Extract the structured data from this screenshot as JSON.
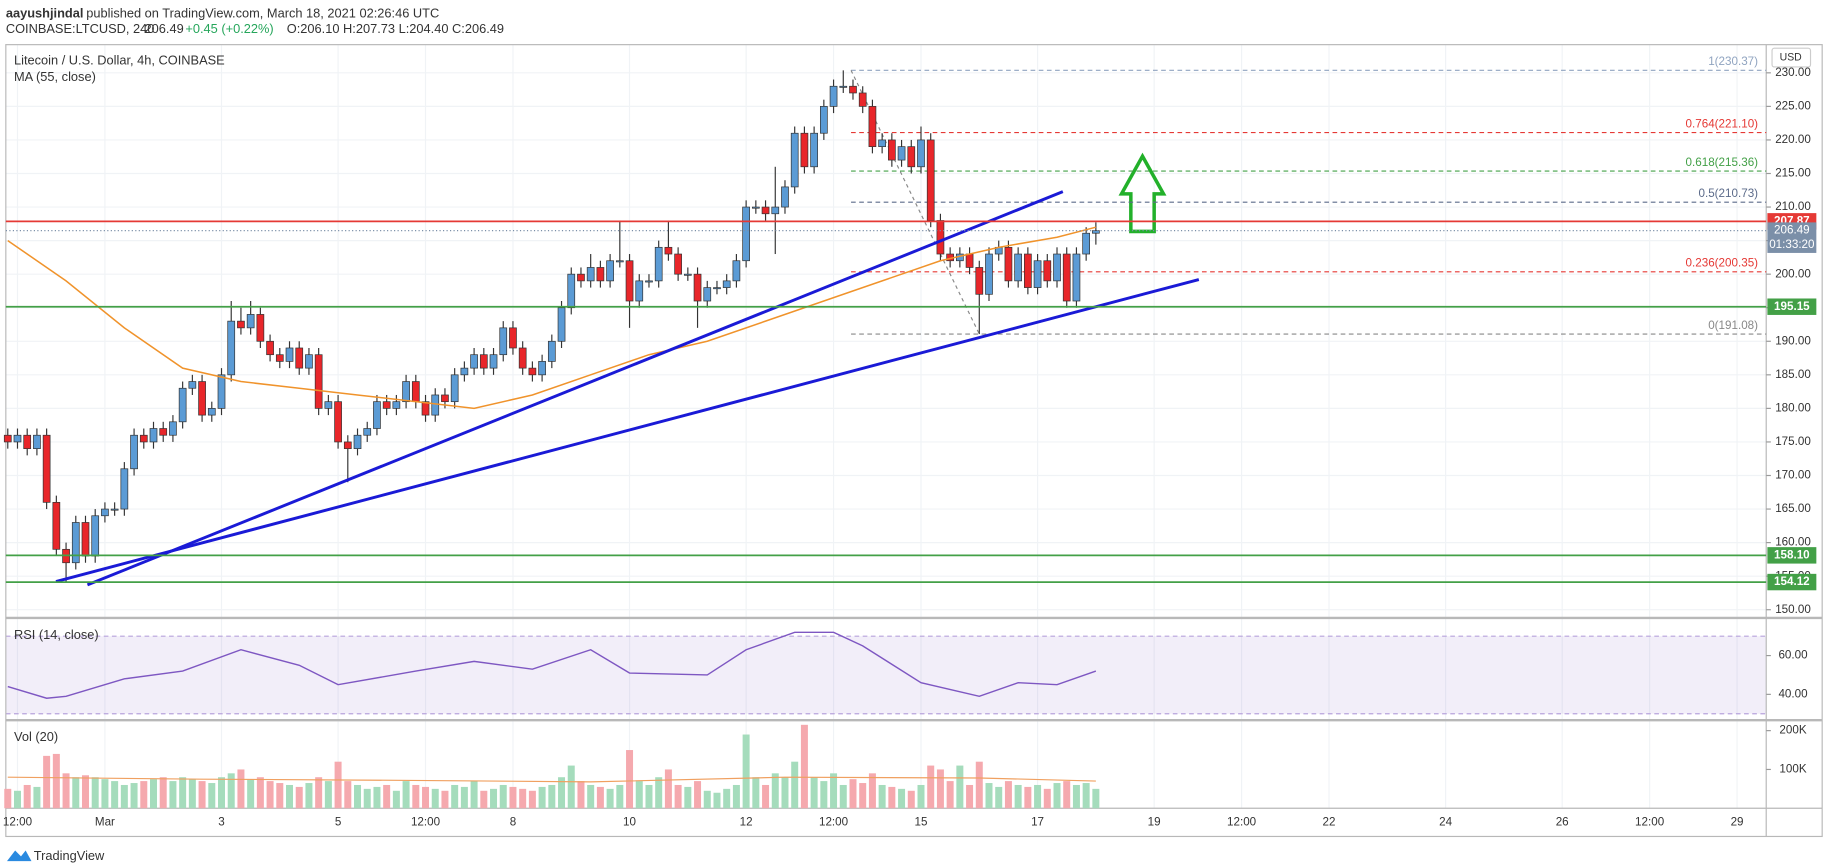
{
  "header": {
    "author": "aayushjindal",
    "published": "published on TradingView.com, March 18, 2021 02:26:46 UTC",
    "symbol": "COINBASE:LTCUSD, 240",
    "last": "206.49",
    "change": "+0.45 (+0.22%)",
    "ohlc": "O:206.10 H:207.73 L:204.40 C:206.49"
  },
  "axis_unit": "USD",
  "footer": "TradingView",
  "chart_data": [
    {
      "type": "candlestick",
      "title": "Litecoin / U.S. Dollar, 4h, COINBASE",
      "up_color": "#5b9bd5",
      "down_color": "#e8262a",
      "open": [
        176,
        175,
        176,
        174,
        176,
        166,
        159,
        157,
        163,
        158,
        164,
        165,
        165,
        171,
        176,
        175,
        177,
        176,
        178,
        183,
        184,
        179,
        180,
        185,
        193,
        192,
        194,
        190,
        188,
        187,
        189,
        186,
        188,
        180,
        181,
        175,
        174,
        176,
        177,
        181,
        180,
        181,
        184,
        181,
        179,
        182,
        181,
        185,
        186,
        188,
        186,
        188,
        192,
        189,
        186,
        185,
        187,
        190,
        195,
        200,
        199,
        201,
        199,
        202,
        202,
        196,
        199,
        199,
        204,
        203,
        200,
        200,
        196,
        198,
        198,
        199,
        202,
        210,
        210,
        209,
        210,
        213,
        221,
        216,
        221,
        225,
        228,
        228,
        227,
        225,
        219,
        220,
        217,
        219,
        216,
        220,
        208,
        203,
        202,
        203,
        201,
        197,
        203,
        204,
        199,
        203,
        198,
        202,
        199,
        203,
        196,
        203,
        206.1
      ],
      "high": [
        177,
        177,
        177,
        177,
        177,
        167,
        160,
        164,
        164,
        165,
        166,
        166,
        172,
        177,
        177,
        178,
        178,
        179,
        184,
        185,
        185,
        181,
        186,
        196,
        195,
        196,
        195,
        191,
        189,
        190,
        190,
        189,
        189,
        182,
        182,
        176,
        177,
        178,
        182,
        182,
        182,
        185,
        185,
        182,
        183,
        183,
        186,
        187,
        189,
        189,
        189,
        193,
        193,
        190,
        187,
        188,
        191,
        196,
        201,
        201,
        203,
        202,
        203,
        208,
        203,
        200,
        200,
        205,
        208,
        204,
        201,
        201,
        199,
        199,
        200,
        203,
        211,
        211,
        211,
        216,
        214,
        222,
        222,
        222,
        226,
        229,
        230.37,
        229,
        228,
        226,
        221,
        221,
        220,
        220,
        222,
        221,
        209,
        204,
        204,
        204,
        202,
        204,
        205,
        205,
        204,
        204,
        203,
        203,
        204,
        204,
        204,
        207,
        207.73
      ],
      "low": [
        174,
        174,
        173,
        173,
        165,
        158,
        154,
        156,
        157,
        157,
        163,
        164,
        164,
        170,
        174,
        174,
        175,
        175,
        177,
        182,
        178,
        178,
        179,
        184,
        191,
        191,
        189,
        187,
        186,
        186,
        185,
        185,
        179,
        179,
        174,
        169,
        173,
        175,
        176,
        179,
        179,
        180,
        180,
        178,
        178,
        180,
        180,
        184,
        185,
        185,
        185,
        187,
        188,
        185,
        184,
        184,
        186,
        189,
        194,
        198,
        198,
        198,
        198,
        201,
        192,
        195,
        198,
        198,
        202,
        199,
        199,
        192,
        195,
        197,
        197,
        198,
        201,
        209,
        208,
        203,
        209,
        212,
        215,
        215,
        220,
        224,
        227,
        226,
        224,
        218,
        218,
        216,
        216,
        215,
        215,
        207,
        202,
        201,
        201,
        200,
        191.08,
        196,
        202,
        198,
        198,
        197,
        197,
        198,
        198,
        195,
        195,
        202,
        204.4
      ],
      "close": [
        175,
        176,
        174,
        176,
        166,
        159,
        157,
        163,
        158,
        164,
        165,
        165,
        171,
        176,
        175,
        177,
        176,
        178,
        183,
        184,
        179,
        180,
        185,
        193,
        192,
        194,
        190,
        188,
        187,
        189,
        186,
        188,
        180,
        181,
        175,
        174,
        176,
        177,
        181,
        180,
        181,
        184,
        181,
        179,
        182,
        181,
        185,
        186,
        188,
        186,
        188,
        192,
        189,
        186,
        185,
        187,
        190,
        195,
        200,
        199,
        201,
        199,
        202,
        202,
        196,
        199,
        199,
        204,
        203,
        200,
        200,
        196,
        198,
        198,
        199,
        202,
        210,
        210,
        209,
        210,
        213,
        221,
        216,
        221,
        225,
        228,
        228,
        227,
        225,
        219,
        220,
        217,
        219,
        216,
        220,
        208,
        203,
        202,
        203,
        201,
        197,
        203,
        204,
        199,
        203,
        198,
        202,
        199,
        203,
        196,
        203,
        206.1,
        206.49
      ],
      "xlim": [
        -0.2,
        181
      ],
      "xticks": [
        {
          "value": 1,
          "label": "12:00"
        },
        {
          "value": 10,
          "label": "Mar"
        },
        {
          "value": 22,
          "label": "3"
        },
        {
          "value": 34,
          "label": "5"
        },
        {
          "value": 43,
          "label": "12:00"
        },
        {
          "value": 52,
          "label": "8"
        },
        {
          "value": 64,
          "label": "10"
        },
        {
          "value": 76,
          "label": "12"
        },
        {
          "value": 85,
          "label": "12:00"
        },
        {
          "value": 94,
          "label": "15"
        },
        {
          "value": 106,
          "label": "17"
        },
        {
          "value": 118,
          "label": "19"
        },
        {
          "value": 127,
          "label": "12:00"
        },
        {
          "value": 136,
          "label": "22"
        },
        {
          "value": 148,
          "label": "24"
        },
        {
          "value": 160,
          "label": "26"
        },
        {
          "value": 169,
          "label": "12:00"
        },
        {
          "value": 178,
          "label": "29"
        }
      ],
      "ylim": [
        148.95,
        234.2
      ],
      "yticks": [
        {
          "value": 150,
          "label": "150.00"
        },
        {
          "value": 155,
          "label": "155.00"
        },
        {
          "value": 160,
          "label": "160.00"
        },
        {
          "value": 165,
          "label": "165.00"
        },
        {
          "value": 170,
          "label": "170.00"
        },
        {
          "value": 175,
          "label": "175.00"
        },
        {
          "value": 180,
          "label": "180.00"
        },
        {
          "value": 185,
          "label": "185.00"
        },
        {
          "value": 190,
          "label": "190.00"
        },
        {
          "value": 195,
          "label": "195.00"
        },
        {
          "value": 200,
          "label": "200.00"
        },
        {
          "value": 205,
          "label": "205.00"
        },
        {
          "value": 210,
          "label": "210.00"
        },
        {
          "value": 215,
          "label": "215.00"
        },
        {
          "value": 220,
          "label": "220.00"
        },
        {
          "value": 225,
          "label": "225.00"
        },
        {
          "value": 230,
          "label": "230.00"
        }
      ],
      "grid": true,
      "ma": {
        "name": "MA (55, close)",
        "color": "#f0932b",
        "x": [
          0,
          6,
          12,
          18,
          24,
          30,
          36,
          42,
          48,
          54,
          60,
          66,
          72,
          78,
          84,
          90,
          96,
          102,
          108,
          112
        ],
        "values": [
          205,
          199,
          192,
          186,
          184,
          183,
          182,
          181,
          180,
          182,
          185,
          188,
          190,
          193,
          196,
          199,
          202,
          204,
          205.5,
          207
        ]
      },
      "hlines": [
        {
          "value": 207.87,
          "color": "#e53935"
        },
        {
          "value": 195.15,
          "color": "#43a047"
        },
        {
          "value": 158.1,
          "label": "158.10",
          "color": "#43a047"
        },
        {
          "value": 154.12,
          "color": "#43a047"
        }
      ],
      "last_price": {
        "value": 206.49,
        "countdown": "01:33:20",
        "color": "#7b8fa8"
      },
      "fib": {
        "start": 86.8,
        "end": 100,
        "levels": [
          {
            "value": 230.37,
            "label": "1(230.37)",
            "color": "#90a4c0"
          },
          {
            "value": 221.1,
            "label": "0.764(221.10)",
            "color": "#e53935"
          },
          {
            "value": 215.36,
            "label": "0.618(215.36)",
            "color": "#43a047"
          },
          {
            "value": 210.73,
            "label": "0.5(210.73)",
            "color": "#5c6b8a"
          },
          {
            "value": 200.35,
            "label": "0.236(200.35)",
            "color": "#e53935"
          },
          {
            "value": 191.08,
            "label": "0(191.08)",
            "color": "#888888"
          }
        ]
      },
      "trend_lines": [
        {
          "color": "#1a1ad6",
          "x": [
            8.2,
            108.6
          ],
          "y": [
            153.7,
            212.3
          ]
        },
        {
          "color": "#1a1ad6",
          "x": [
            4.96,
            122.6
          ],
          "y": [
            154.2,
            199.2
          ]
        }
      ]
    },
    {
      "type": "line",
      "title": "RSI (14, close)",
      "color": "#7e57c2",
      "x": [
        0,
        4,
        6,
        12,
        18,
        24,
        30,
        34,
        42,
        48,
        54,
        60,
        64,
        72,
        76,
        81,
        85,
        88,
        94,
        100,
        104,
        108,
        112
      ],
      "values": [
        44,
        38,
        39,
        48,
        52,
        63,
        55,
        45,
        52,
        57,
        53,
        63,
        51,
        50,
        63,
        72,
        72,
        65,
        46,
        39,
        46,
        45,
        52
      ],
      "ylim": [
        27.3,
        78.8
      ],
      "yticks": [
        {
          "value": 40,
          "label": "40.00"
        },
        {
          "value": 60,
          "label": "60.00"
        }
      ],
      "bands": [
        30,
        70
      ]
    },
    {
      "type": "bar",
      "title": "Vol (20)",
      "up_color": "#a5dcbc",
      "down_color": "#f5a9ae",
      "values": [
        50000,
        45000,
        60000,
        55000,
        135000,
        140000,
        90000,
        80000,
        85000,
        80000,
        75000,
        70000,
        60000,
        65000,
        70000,
        75000,
        80000,
        70000,
        80000,
        75000,
        70000,
        65000,
        80000,
        90000,
        100000,
        75000,
        80000,
        70000,
        65000,
        60000,
        55000,
        65000,
        80000,
        70000,
        120000,
        70000,
        60000,
        50000,
        55000,
        60000,
        45000,
        70000,
        60000,
        55000,
        50000,
        45000,
        60000,
        55000,
        70000,
        45000,
        50000,
        60000,
        55000,
        50000,
        45000,
        55000,
        60000,
        80000,
        110000,
        70000,
        60000,
        55000,
        50000,
        60000,
        150000,
        70000,
        60000,
        80000,
        100000,
        60000,
        55000,
        70000,
        45000,
        40000,
        50000,
        60000,
        190000,
        80000,
        60000,
        90000,
        80000,
        120000,
        215000,
        80000,
        70000,
        90000,
        60000,
        75000,
        65000,
        90000,
        60000,
        55000,
        50000,
        45000,
        60000,
        110000,
        100000,
        70000,
        110000,
        60000,
        120000,
        65000,
        55000,
        70000,
        60000,
        55000,
        60000,
        50000,
        65000,
        70000,
        60000,
        65000,
        50000
      ],
      "ylim": [
        0,
        224000
      ],
      "yticks": [
        {
          "value": 100000,
          "label": "100K"
        },
        {
          "value": 200000,
          "label": "200K"
        }
      ],
      "ma": {
        "color": "#f0a060",
        "x": [
          0,
          20,
          40,
          60,
          80,
          100,
          112
        ],
        "values": [
          80000,
          75000,
          72000,
          68000,
          80000,
          78000,
          70000
        ]
      }
    }
  ]
}
